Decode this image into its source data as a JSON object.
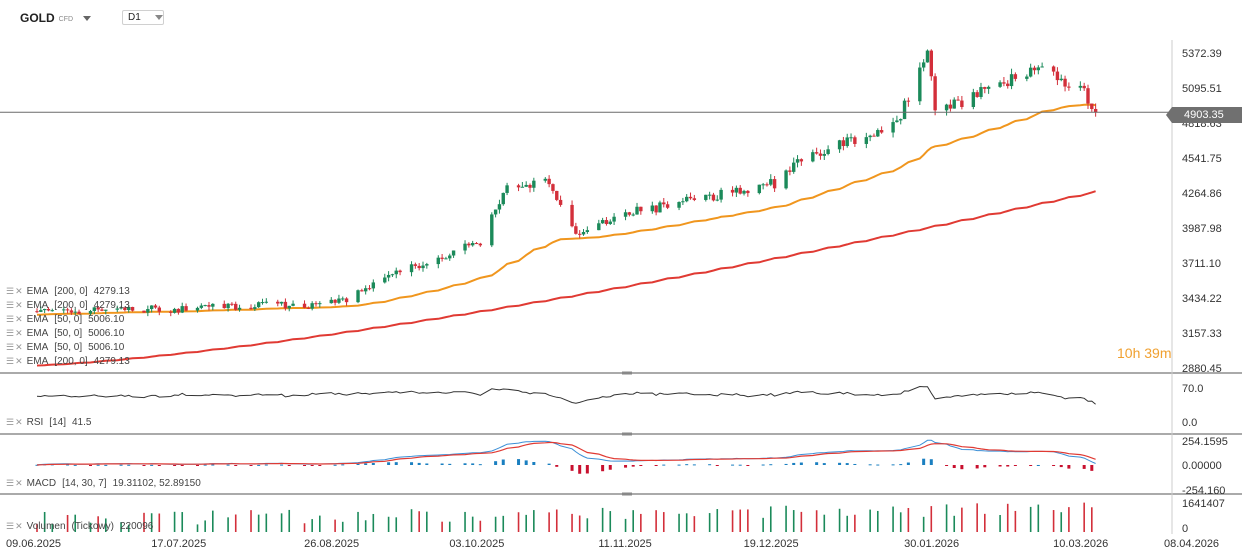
{
  "instrument": {
    "name": "GOLD",
    "type": "CFD",
    "timeframe": "D1"
  },
  "current_price": "4903.35",
  "countdown": {
    "hours": "10",
    "h_unit": "h",
    "minutes": "39",
    "m_unit": "m"
  },
  "price_axis": [
    "5372.39",
    "5095.51",
    "4818.63",
    "4541.75",
    "4264.86",
    "3987.98",
    "3711.10",
    "3434.22",
    "3157.33",
    "2880.45"
  ],
  "rsi_axis": [
    "70.0",
    "0.0"
  ],
  "macd_axis": [
    "254.1595",
    "0.00000",
    "-254.160"
  ],
  "volume_axis": [
    "1641407",
    "0"
  ],
  "date_axis": [
    "09.06.2025",
    "17.07.2025",
    "26.08.2025",
    "03.10.2025",
    "11.11.2025",
    "19.12.2025",
    "30.01.2026",
    "10.03.2026",
    "08.04.2026"
  ],
  "indicator_legends": [
    {
      "name": "EMA",
      "params": "[200, 0]",
      "value": "4279.13"
    },
    {
      "name": "EMA",
      "params": "[200, 0]",
      "value": "4279.13"
    },
    {
      "name": "EMA",
      "params": "[50, 0]",
      "value": "5006.10"
    },
    {
      "name": "EMA",
      "params": "[50, 0]",
      "value": "5006.10"
    },
    {
      "name": "EMA",
      "params": "[50, 0]",
      "value": "5006.10"
    },
    {
      "name": "EMA",
      "params": "[200, 0]",
      "value": "4279.13"
    }
  ],
  "rsi_legend": {
    "name": "RSI",
    "params": "[14]",
    "value": "41.5"
  },
  "macd_legend": {
    "name": "MACD",
    "params": "[14, 30, 7]",
    "value": "19.31102,   52.89150"
  },
  "volume_legend": {
    "name": "Volumen",
    "params": "(Tickowy)",
    "value": "220096"
  },
  "colors": {
    "up": "#1b8a5a",
    "down": "#d32f3a",
    "ema50": "#f0961e",
    "ema200": "#e03a33",
    "macd_line": "#3b8fd6",
    "signal_line": "#e03a33",
    "hist_pos": "#1a7fc0",
    "hist_neg": "#c8102e"
  },
  "chart_data": {
    "type": "candlestick",
    "x_range": [
      "09.06.2025",
      "08.04.2026"
    ],
    "ylim": [
      2880.45,
      5372.39
    ],
    "series": [
      {
        "name": "GOLD D1",
        "close_checkpoints": [
          [
            "09.06.2025",
            3330
          ],
          [
            "17.07.2025",
            3350
          ],
          [
            "26.08.2025",
            3390
          ],
          [
            "15.09.2025",
            3680
          ],
          [
            "03.10.2025",
            3880
          ],
          [
            "10.10.2025",
            4300
          ],
          [
            "20.10.2025",
            4360
          ],
          [
            "28.10.2025",
            3950
          ],
          [
            "11.11.2025",
            4110
          ],
          [
            "19.12.2025",
            4340
          ],
          [
            "26.12.2025",
            4520
          ],
          [
            "20.01.2026",
            4820
          ],
          [
            "28.01.2026",
            5400
          ],
          [
            "30.01.2026",
            4880
          ],
          [
            "10.02.2026",
            5050
          ],
          [
            "25.02.2026",
            5250
          ],
          [
            "10.03.2026",
            5080
          ],
          [
            "13.03.2026",
            4903.35
          ]
        ]
      },
      {
        "name": "EMA [50, 0]",
        "value": 5006.1
      },
      {
        "name": "EMA [200, 0]",
        "value": 4279.13
      },
      {
        "name": "RSI [14]",
        "value": 41.5
      }
    ]
  }
}
